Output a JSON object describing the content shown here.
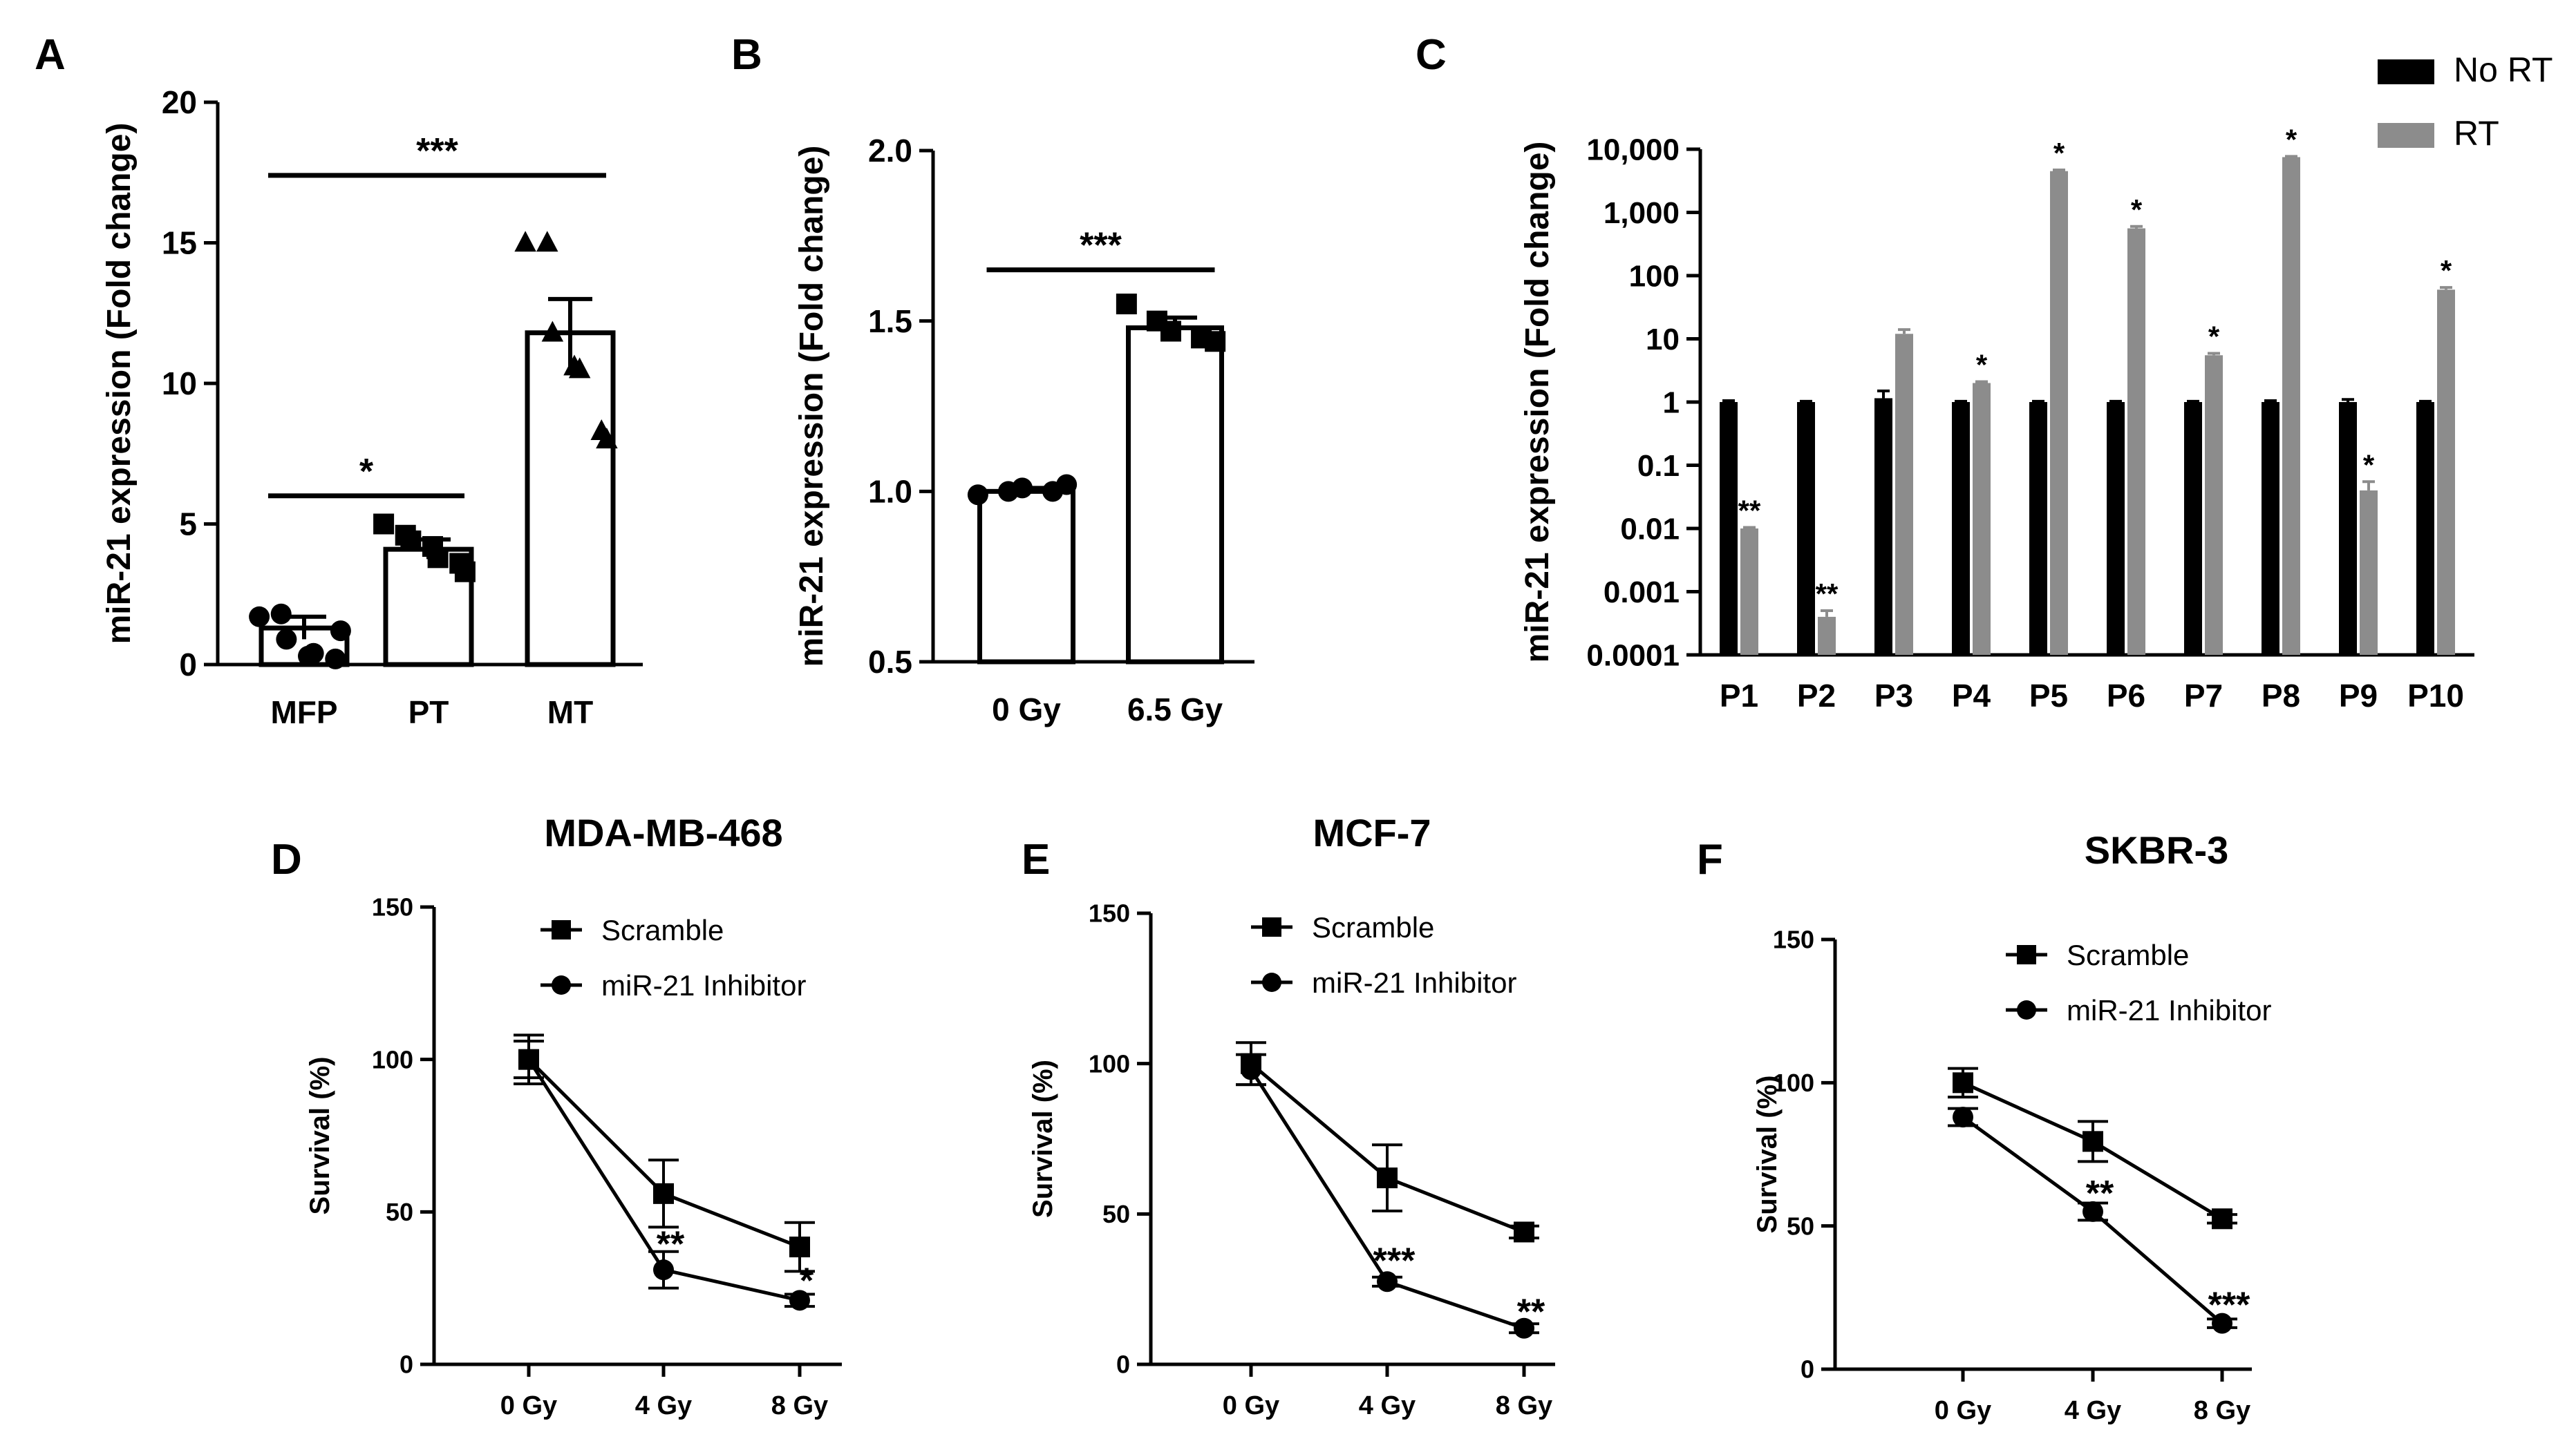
{
  "chart_data": [
    {
      "id": "A",
      "panel_label": "A",
      "type": "bar",
      "title": "",
      "ylabel": "miR-21 expression (Fold change)",
      "xlabel": "",
      "ylim": [
        0,
        20
      ],
      "yticks": [
        "0",
        "5",
        "10",
        "15",
        "20"
      ],
      "categories": [
        "MFP",
        "PT",
        "MT"
      ],
      "values": [
        1.3,
        4.1,
        11.8
      ],
      "errors": [
        0.4,
        0.35,
        1.2
      ],
      "points": [
        [
          1.7,
          1.8,
          0.9,
          0.3,
          0.4,
          0.2,
          1.2
        ],
        [
          5.0,
          4.6,
          4.4,
          4.2,
          3.8,
          3.6,
          3.3
        ],
        [
          15.0,
          15.0,
          11.8,
          10.6,
          10.5,
          8.3,
          8.0
        ]
      ],
      "marker": [
        "circle",
        "square",
        "triangle"
      ],
      "significance": [
        {
          "from": 0,
          "to": 1,
          "label": "*",
          "y": 6.0
        },
        {
          "from": 0,
          "to": 2,
          "label": "***",
          "y": 17.4
        }
      ]
    },
    {
      "id": "B",
      "panel_label": "B",
      "type": "bar",
      "title": "",
      "ylabel": "miR-21 expression (Fold change)",
      "xlabel": "",
      "ylim": [
        0.5,
        2.0
      ],
      "yticks": [
        "0.5",
        "1.0",
        "1.5",
        "2.0"
      ],
      "categories": [
        "0 Gy",
        "6.5 Gy"
      ],
      "values": [
        1.0,
        1.48
      ],
      "errors": [
        0.01,
        0.03
      ],
      "points": [
        [
          0.99,
          1.0,
          1.01,
          1.0,
          1.02
        ],
        [
          1.55,
          1.5,
          1.47,
          1.45,
          1.44
        ]
      ],
      "marker": [
        "circle",
        "square"
      ],
      "significance": [
        {
          "from": 0,
          "to": 1,
          "label": "***",
          "y": 1.65
        }
      ]
    },
    {
      "id": "C",
      "panel_label": "C",
      "type": "bar",
      "title": "",
      "ylabel": "miR-21 expression (Fold change)",
      "xlabel": "",
      "yscale": "log",
      "ylim": [
        0.0001,
        10000
      ],
      "yticks": [
        "0.0001",
        "0.001",
        "0.01",
        "0.1",
        "1",
        "10",
        "100",
        "1,000",
        "10,000"
      ],
      "categories": [
        "P1",
        "P2",
        "P3",
        "P4",
        "P5",
        "P6",
        "P7",
        "P8",
        "P9",
        "P10"
      ],
      "series": [
        {
          "name": "No RT",
          "color": "#000000",
          "values": [
            1,
            1,
            1.15,
            1,
            1,
            1,
            1,
            1,
            1,
            1
          ],
          "errors_hi": [
            1.05,
            1.03,
            1.5,
            1.03,
            1.03,
            1.03,
            1.03,
            1.05,
            1.1,
            1.03
          ]
        },
        {
          "name": "RT",
          "color": "#8c8c8c",
          "values": [
            0.01,
            0.0004,
            12,
            2,
            4500,
            560,
            5.5,
            7500,
            0.04,
            60
          ],
          "errors_hi": [
            0.0104,
            0.0005,
            14,
            2.1,
            4700,
            600,
            5.9,
            7700,
            0.055,
            65
          ],
          "annotations": [
            "**",
            "**",
            "",
            "*",
            "*",
            "*",
            "*",
            "*",
            "*",
            "*"
          ]
        }
      ]
    },
    {
      "id": "D",
      "panel_label": "D",
      "type": "line",
      "title": "MDA-MB-468",
      "ylabel": "Survival (%)",
      "xlabel": "",
      "ylim": [
        0,
        150
      ],
      "yticks": [
        "0",
        "50",
        "100",
        "150"
      ],
      "categories": [
        "0 Gy",
        "4 Gy",
        "8 Gy"
      ],
      "series": [
        {
          "name": "Scramble",
          "marker": "square",
          "values": [
            100,
            56,
            38.5
          ],
          "errors": [
            8,
            11,
            8
          ]
        },
        {
          "name": "miR-21 Inhibitor",
          "marker": "circle",
          "values": [
            100,
            31,
            21
          ],
          "errors": [
            6,
            6,
            2
          ]
        }
      ],
      "annotations": [
        {
          "x": 1,
          "y": 40,
          "label": "**"
        },
        {
          "x": 2,
          "y": 28,
          "label": "*"
        }
      ]
    },
    {
      "id": "E",
      "panel_label": "E",
      "type": "line",
      "title": "MCF-7",
      "ylabel": "Survival (%)",
      "xlabel": "",
      "ylim": [
        0,
        150
      ],
      "yticks": [
        "0",
        "50",
        "100",
        "150"
      ],
      "categories": [
        "0 Gy",
        "4 Gy",
        "8 Gy"
      ],
      "series": [
        {
          "name": "Scramble",
          "marker": "square",
          "values": [
            100,
            62,
            44
          ],
          "errors": [
            7,
            11,
            2
          ]
        },
        {
          "name": "miR-21 Inhibitor",
          "marker": "circle",
          "values": [
            98,
            27.5,
            12
          ],
          "errors": [
            5,
            1.5,
            1.5
          ]
        }
      ],
      "annotations": [
        {
          "x": 1,
          "y": 35,
          "label": "***"
        },
        {
          "x": 2,
          "y": 18,
          "label": "**"
        }
      ]
    },
    {
      "id": "F",
      "panel_label": "F",
      "type": "line",
      "title": "SKBR-3",
      "ylabel": "Survival (%)",
      "xlabel": "",
      "ylim": [
        0,
        150
      ],
      "yticks": [
        "0",
        "50",
        "100",
        "150"
      ],
      "categories": [
        "0 Gy",
        "4 Gy",
        "8 Gy"
      ],
      "series": [
        {
          "name": "Scramble",
          "marker": "square",
          "values": [
            100,
            79.5,
            52.5
          ],
          "errors": [
            5,
            7,
            1.5
          ]
        },
        {
          "name": "miR-21 Inhibitor",
          "marker": "circle",
          "values": [
            88,
            55,
            16
          ],
          "errors": [
            3,
            3,
            1.5
          ]
        }
      ],
      "annotations": [
        {
          "x": 1,
          "y": 62,
          "label": "**"
        },
        {
          "x": 2,
          "y": 23,
          "label": "***"
        }
      ]
    }
  ]
}
